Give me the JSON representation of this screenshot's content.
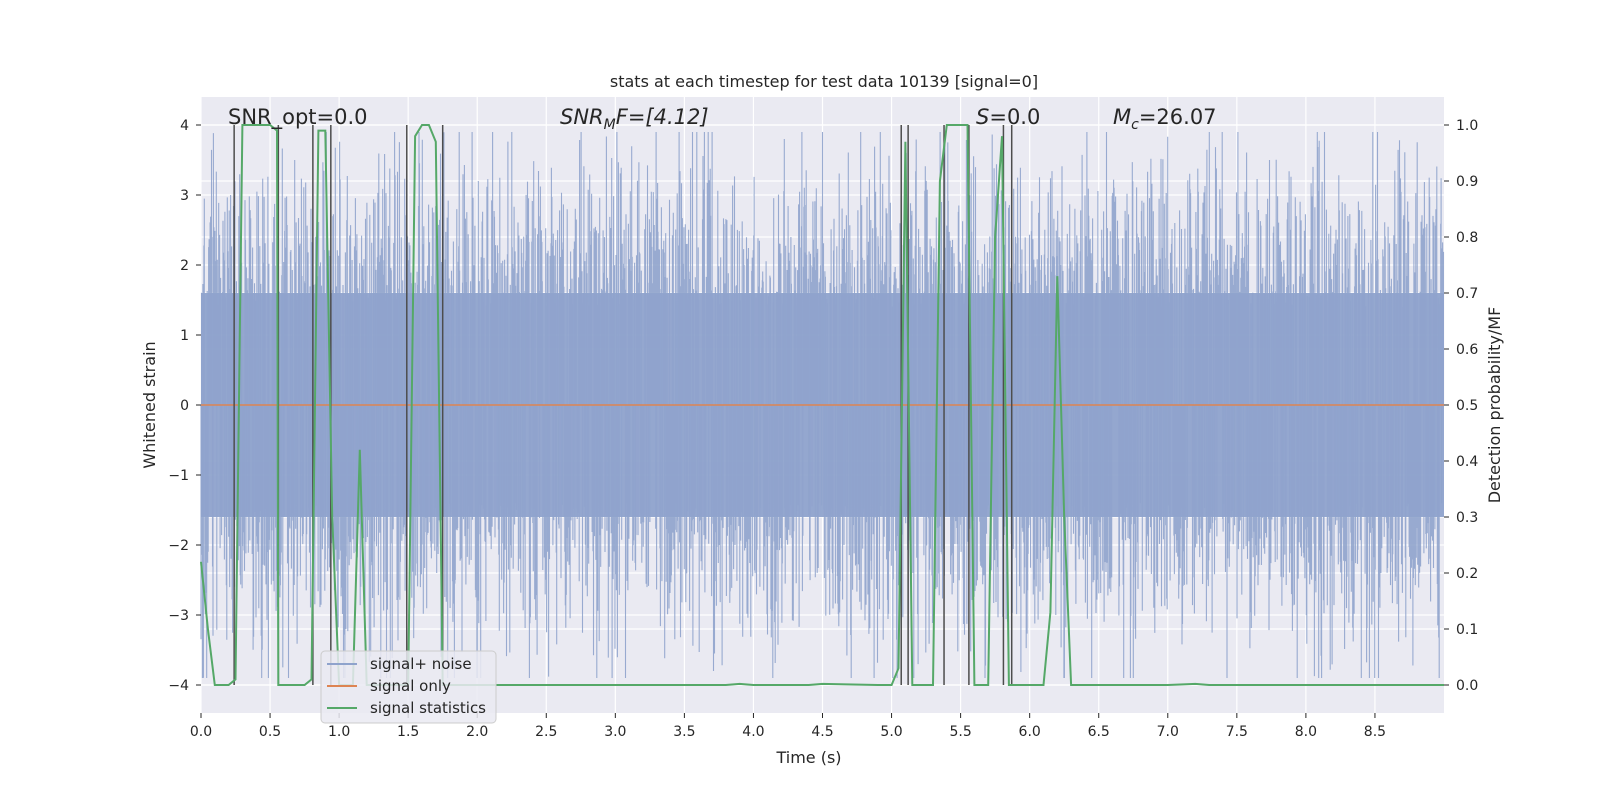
{
  "chart_data": {
    "type": "line",
    "title": "stats at each timestep for test data 10139 [signal=0]",
    "xlabel": "Time (s)",
    "ylabel": "Whitened strain",
    "ylabel_right": "Detection probability/MF",
    "xlim": [
      0,
      9.0
    ],
    "ylim": [
      -4.4,
      4.4
    ],
    "ylim_right": [
      -0.05,
      1.05
    ],
    "xticks": [
      0.0,
      0.5,
      1.0,
      1.5,
      2.0,
      2.5,
      3.0,
      3.5,
      4.0,
      4.5,
      5.0,
      5.5,
      6.0,
      6.5,
      7.0,
      7.5,
      8.0,
      8.5
    ],
    "xtick_labels": [
      "0.0",
      "0.5",
      "1.0",
      "1.5",
      "2.0",
      "2.5",
      "3.0",
      "3.5",
      "4.0",
      "4.5",
      "5.0",
      "5.5",
      "6.0",
      "6.5",
      "7.0",
      "7.5",
      "8.0",
      "8.5"
    ],
    "yticks": [
      4,
      3,
      2,
      1,
      0,
      -1,
      -2,
      -3,
      -4
    ],
    "ytick_labels": [
      "4",
      "3",
      "2",
      "1",
      "0",
      "−1",
      "−2",
      "−3",
      "−4"
    ],
    "yticks_right": [
      1.0,
      0.9,
      0.8,
      0.7,
      0.6,
      0.5,
      0.4,
      0.3,
      0.2,
      0.1,
      0.0
    ],
    "ytick_labels_right": [
      "1.0",
      "0.9",
      "0.8",
      "0.7",
      "0.6",
      "0.5",
      "0.4",
      "0.3",
      "0.2",
      "0.1",
      "0.0"
    ],
    "annotations": {
      "snr_opt": "SNR_opt=0.0",
      "snr_mf_symbol": "SNR",
      "snr_mf_sub": "M",
      "snr_mf_rest": "F=[4.12]",
      "s_symbol": "S",
      "s_rest": "=0.0",
      "mc_symbol": "M",
      "mc_sub": "c",
      "mc_rest": "=26.07"
    },
    "legend": {
      "position": "lower-left",
      "entries": [
        "signal+ noise",
        "signal only",
        "signal statistics"
      ]
    },
    "colors": {
      "noise": "#8fa3cc",
      "signal_only": "#dd8452",
      "statistics": "#55a868",
      "vlines": "#4d4d4d",
      "background": "#eaeaf2",
      "grid": "#ffffff"
    },
    "noise_series": {
      "name": "signal+ noise",
      "description_values": {
        "duration_s": 9.0,
        "core_band": [
          -1.6,
          1.6
        ]
      }
    },
    "signal_series": {
      "name": "signal only",
      "value": 0.0
    },
    "vertical_lines_x": [
      0.24,
      0.56,
      0.81,
      0.94,
      1.49,
      1.75,
      5.07,
      5.12,
      5.38,
      5.56,
      5.81,
      5.87
    ],
    "statistics_series": {
      "name": "signal statistics",
      "x": [
        0.0,
        0.05,
        0.1,
        0.2,
        0.25,
        0.3,
        0.4,
        0.5,
        0.55,
        0.56,
        0.6,
        0.7,
        0.75,
        0.8,
        0.85,
        0.9,
        0.95,
        1.0,
        1.05,
        1.1,
        1.15,
        1.2,
        1.3,
        1.45,
        1.5,
        1.55,
        1.6,
        1.65,
        1.7,
        1.75,
        1.8,
        1.85,
        2.0,
        3.0,
        3.8,
        3.9,
        4.0,
        4.4,
        4.5,
        4.9,
        5.0,
        5.05,
        5.1,
        5.15,
        5.2,
        5.3,
        5.35,
        5.4,
        5.45,
        5.55,
        5.6,
        5.65,
        5.7,
        5.75,
        5.8,
        5.85,
        5.9,
        5.95,
        6.0,
        6.1,
        6.15,
        6.2,
        6.25,
        6.3,
        6.35,
        6.4,
        6.6,
        7.0,
        7.2,
        7.3,
        7.5,
        8.0,
        8.5,
        9.0
      ],
      "y": [
        0.22,
        0.1,
        0.0,
        0.0,
        0.01,
        1.0,
        1.0,
        1.0,
        0.99,
        0.0,
        0.0,
        0.0,
        0.0,
        0.01,
        0.99,
        0.99,
        0.3,
        0.0,
        0.0,
        0.0,
        0.42,
        0.0,
        0.0,
        0.0,
        0.0,
        0.98,
        1.0,
        1.0,
        0.97,
        0.0,
        0.0,
        0.0,
        0.0,
        0.0,
        0.0,
        0.002,
        0.0,
        0.0,
        0.002,
        0.0,
        0.0,
        0.03,
        0.97,
        0.0,
        0.0,
        0.0,
        0.9,
        1.0,
        1.0,
        1.0,
        0.0,
        0.0,
        0.0,
        0.8,
        0.98,
        0.0,
        0.0,
        0.0,
        0.0,
        0.0,
        0.13,
        0.73,
        0.3,
        0.0,
        0.0,
        0.0,
        0.0,
        0.0,
        0.002,
        0.0,
        0.0,
        0.0,
        0.0,
        0.0
      ]
    }
  }
}
